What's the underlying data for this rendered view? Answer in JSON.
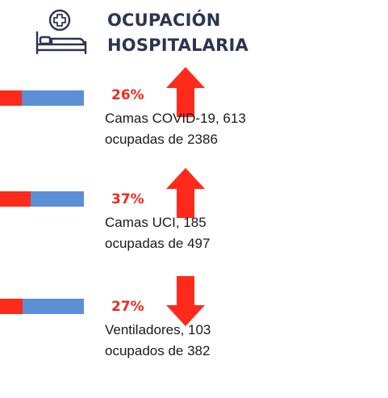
{
  "header": {
    "title_line1": "OCUPACIÓN",
    "title_line2": "HOSPITALARIA",
    "icon": "hospital-bed-icon"
  },
  "colors": {
    "bar_background": "#5b8fd6",
    "bar_fill": "#ff2a1a",
    "accent_red": "#ee2a1f",
    "title": "#2e3450"
  },
  "rows": [
    {
      "percent_label": "26%",
      "percent_value": 26,
      "desc_line1": "Camas COVID-19,  613",
      "desc_line2": "ocupadas de 2386",
      "trend": "up",
      "trend_icon": "arrow-up-icon"
    },
    {
      "percent_label": "37%",
      "percent_value": 37,
      "desc_line1": "Camas UCI,  185",
      "desc_line2": "ocupadas de 497",
      "trend": "up",
      "trend_icon": "arrow-up-icon"
    },
    {
      "percent_label": "27%",
      "percent_value": 27,
      "desc_line1": "Ventiladores, 103",
      "desc_line2": "ocupados de 382",
      "trend": "down",
      "trend_icon": "arrow-down-icon"
    }
  ]
}
